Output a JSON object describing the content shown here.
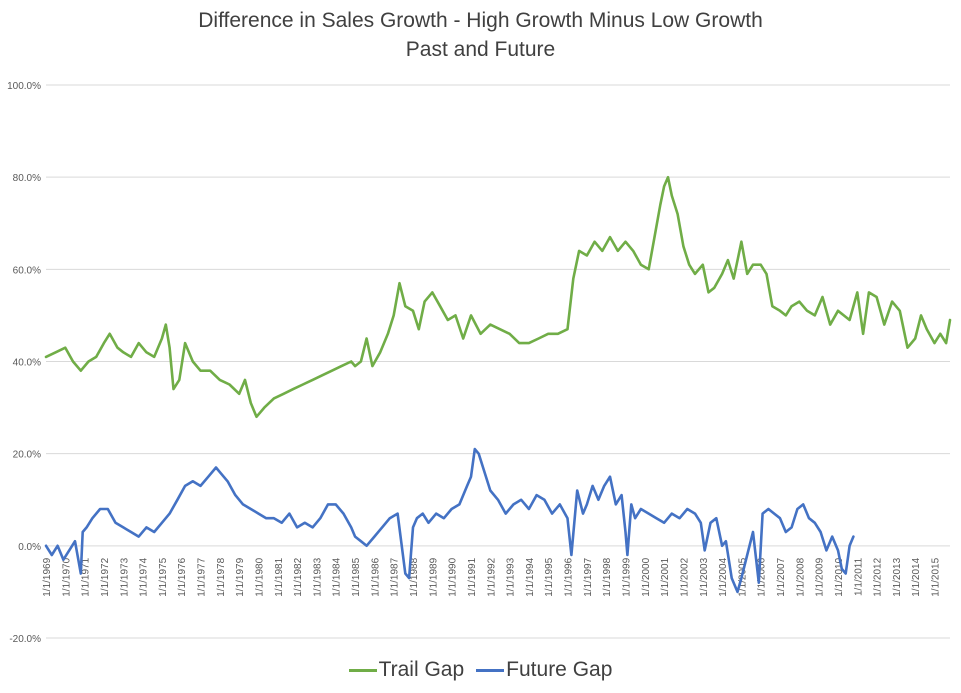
{
  "chart_data": {
    "type": "line",
    "title": "Difference in Sales Growth - High Growth Minus Low Growth",
    "subtitle": "Past and Future",
    "xlabel": "",
    "ylabel": "",
    "ylim": [
      -0.2,
      1.0
    ],
    "y_ticks": [
      "100.0%",
      "80.0%",
      "60.0%",
      "40.0%",
      "20.0%",
      "0.0%",
      "-20.0%"
    ],
    "y_tick_values": [
      1.0,
      0.8,
      0.6,
      0.4,
      0.2,
      0.0,
      -0.2
    ],
    "x_range": [
      1969,
      2015.8
    ],
    "x_ticks": [
      "1/1/1969",
      "1/1/1970",
      "1/1/1971",
      "1/1/1972",
      "1/1/1973",
      "1/1/1974",
      "1/1/1975",
      "1/1/1976",
      "1/1/1977",
      "1/1/1978",
      "1/1/1979",
      "1/1/1980",
      "1/1/1981",
      "1/1/1982",
      "1/1/1983",
      "1/1/1984",
      "1/1/1985",
      "1/1/1986",
      "1/1/1987",
      "1/1/1988",
      "1/1/1989",
      "1/1/1990",
      "1/1/1991",
      "1/1/1992",
      "1/1/1993",
      "1/1/1994",
      "1/1/1995",
      "1/1/1996",
      "1/1/1997",
      "1/1/1998",
      "1/1/1999",
      "1/1/2000",
      "1/1/2001",
      "1/1/2002",
      "1/1/2003",
      "1/1/2004",
      "1/1/2005",
      "1/1/2006",
      "1/1/2007",
      "1/1/2008",
      "1/1/2009",
      "1/1/2010",
      "1/1/2011",
      "1/1/2012",
      "1/1/2013",
      "1/1/2014",
      "1/1/2015"
    ],
    "x_tick_years": [
      1969,
      1970,
      1971,
      1972,
      1973,
      1974,
      1975,
      1976,
      1977,
      1978,
      1979,
      1980,
      1981,
      1982,
      1983,
      1984,
      1985,
      1986,
      1987,
      1988,
      1989,
      1990,
      1991,
      1992,
      1993,
      1994,
      1995,
      1996,
      1997,
      1998,
      1999,
      2000,
      2001,
      2002,
      2003,
      2004,
      2005,
      2006,
      2007,
      2008,
      2009,
      2010,
      2011,
      2012,
      2013,
      2014,
      2015
    ],
    "grid": true,
    "legend_position": "bottom",
    "series": [
      {
        "name": "Trail Gap",
        "color": "#70AD47",
        "x": [
          1969.0,
          1969.5,
          1970.0,
          1970.4,
          1970.8,
          1971.2,
          1971.6,
          1972.0,
          1972.3,
          1972.7,
          1973.0,
          1973.4,
          1973.8,
          1974.2,
          1974.6,
          1975.0,
          1975.2,
          1975.4,
          1975.6,
          1975.9,
          1976.2,
          1976.6,
          1977.0,
          1977.5,
          1978.0,
          1978.5,
          1979.0,
          1979.3,
          1979.6,
          1979.9,
          1980.3,
          1980.8,
          1981.3,
          1981.8,
          1982.3,
          1982.8,
          1983.3,
          1983.8,
          1984.3,
          1984.8,
          1985.0,
          1985.3,
          1985.6,
          1985.9,
          1986.3,
          1986.7,
          1987.0,
          1987.3,
          1987.6,
          1988.0,
          1988.3,
          1988.6,
          1989.0,
          1989.4,
          1989.8,
          1990.2,
          1990.6,
          1991.0,
          1991.5,
          1992.0,
          1992.5,
          1993.0,
          1993.5,
          1994.0,
          1994.5,
          1995.0,
          1995.5,
          1996.0,
          1996.3,
          1996.6,
          1997.0,
          1997.4,
          1997.8,
          1998.2,
          1998.6,
          1999.0,
          1999.4,
          1999.8,
          2000.2,
          2000.5,
          2000.8,
          2001.0,
          2001.2,
          2001.4,
          2001.7,
          2002.0,
          2002.3,
          2002.6,
          2003.0,
          2003.3,
          2003.6,
          2004.0,
          2004.3,
          2004.6,
          2005.0,
          2005.3,
          2005.6,
          2006.0,
          2006.3,
          2006.6,
          2007.0,
          2007.3,
          2007.6,
          2008.0,
          2008.4,
          2008.8,
          2009.2,
          2009.6,
          2010.0,
          2010.3,
          2010.6,
          2011.0,
          2011.3,
          2011.6,
          2012.0,
          2012.4,
          2012.8,
          2013.2,
          2013.6,
          2014.0,
          2014.3,
          2014.6,
          2015.0,
          2015.3,
          2015.6,
          2015.8
        ],
        "y": [
          0.41,
          0.42,
          0.43,
          0.4,
          0.38,
          0.4,
          0.41,
          0.44,
          0.46,
          0.43,
          0.42,
          0.41,
          0.44,
          0.42,
          0.41,
          0.45,
          0.48,
          0.43,
          0.34,
          0.36,
          0.44,
          0.4,
          0.38,
          0.38,
          0.36,
          0.35,
          0.33,
          0.36,
          0.31,
          0.28,
          0.3,
          0.32,
          0.33,
          0.34,
          0.35,
          0.36,
          0.37,
          0.38,
          0.39,
          0.4,
          0.39,
          0.4,
          0.45,
          0.39,
          0.42,
          0.46,
          0.5,
          0.57,
          0.52,
          0.51,
          0.47,
          0.53,
          0.55,
          0.52,
          0.49,
          0.5,
          0.45,
          0.5,
          0.46,
          0.48,
          0.47,
          0.46,
          0.44,
          0.44,
          0.45,
          0.46,
          0.46,
          0.47,
          0.58,
          0.64,
          0.63,
          0.66,
          0.64,
          0.67,
          0.64,
          0.66,
          0.64,
          0.61,
          0.6,
          0.67,
          0.74,
          0.78,
          0.8,
          0.76,
          0.72,
          0.65,
          0.61,
          0.59,
          0.61,
          0.55,
          0.56,
          0.59,
          0.62,
          0.58,
          0.66,
          0.59,
          0.61,
          0.61,
          0.59,
          0.52,
          0.51,
          0.5,
          0.52,
          0.53,
          0.51,
          0.5,
          0.54,
          0.48,
          0.51,
          0.5,
          0.49,
          0.55,
          0.46,
          0.55,
          0.54,
          0.48,
          0.53,
          0.51,
          0.43,
          0.45,
          0.5,
          0.47,
          0.44,
          0.46,
          0.44,
          0.49
        ],
        "x_label": "",
        "y_label": ""
      },
      {
        "name": "Future Gap",
        "color": "#4472C4",
        "x": [
          1969.0,
          1969.3,
          1969.6,
          1969.9,
          1970.2,
          1970.5,
          1970.8,
          1970.9,
          1971.1,
          1971.4,
          1971.8,
          1972.2,
          1972.6,
          1973.0,
          1973.4,
          1973.8,
          1974.2,
          1974.6,
          1975.0,
          1975.4,
          1975.8,
          1976.2,
          1976.6,
          1977.0,
          1977.4,
          1977.8,
          1978.0,
          1978.4,
          1978.8,
          1979.2,
          1979.6,
          1980.0,
          1980.4,
          1980.8,
          1981.2,
          1981.6,
          1982.0,
          1982.4,
          1982.8,
          1983.2,
          1983.6,
          1984.0,
          1984.4,
          1984.8,
          1985.0,
          1985.3,
          1985.6,
          1986.0,
          1986.4,
          1986.8,
          1987.2,
          1987.6,
          1987.8,
          1988.0,
          1988.2,
          1988.5,
          1988.8,
          1989.2,
          1989.6,
          1990.0,
          1990.4,
          1990.8,
          1991.0,
          1991.2,
          1991.4,
          1991.7,
          1992.0,
          1992.4,
          1992.8,
          1993.2,
          1993.6,
          1994.0,
          1994.4,
          1994.8,
          1995.2,
          1995.6,
          1996.0,
          1996.2,
          1996.5,
          1996.8,
          1997.0,
          1997.3,
          1997.6,
          1997.9,
          1998.2,
          1998.5,
          1998.8,
          1999.0,
          1999.1,
          1999.3,
          1999.5,
          1999.8,
          2000.2,
          2000.6,
          2001.0,
          2001.4,
          2001.8,
          2002.2,
          2002.6,
          2002.9,
          2003.1,
          2003.4,
          2003.7,
          2004.0,
          2004.2,
          2004.5,
          2004.8,
          2005.0,
          2005.3,
          2005.6,
          2005.9,
          2006.1,
          2006.4,
          2006.7,
          2007.0,
          2007.3,
          2007.6,
          2007.9,
          2008.2,
          2008.5,
          2008.8,
          2009.1,
          2009.4,
          2009.7,
          2010.0,
          2010.2,
          2010.4,
          2010.6,
          2010.8
        ],
        "y": [
          0.0,
          -0.02,
          0.0,
          -0.03,
          -0.01,
          0.01,
          -0.06,
          0.03,
          0.04,
          0.06,
          0.08,
          0.08,
          0.05,
          0.04,
          0.03,
          0.02,
          0.04,
          0.03,
          0.05,
          0.07,
          0.1,
          0.13,
          0.14,
          0.13,
          0.15,
          0.17,
          0.16,
          0.14,
          0.11,
          0.09,
          0.08,
          0.07,
          0.06,
          0.06,
          0.05,
          0.07,
          0.04,
          0.05,
          0.04,
          0.06,
          0.09,
          0.09,
          0.07,
          0.04,
          0.02,
          0.01,
          0.0,
          0.02,
          0.04,
          0.06,
          0.07,
          -0.06,
          -0.07,
          0.04,
          0.06,
          0.07,
          0.05,
          0.07,
          0.06,
          0.08,
          0.09,
          0.13,
          0.15,
          0.21,
          0.2,
          0.16,
          0.12,
          0.1,
          0.07,
          0.09,
          0.1,
          0.08,
          0.11,
          0.1,
          0.07,
          0.09,
          0.06,
          -0.02,
          0.12,
          0.07,
          0.09,
          0.13,
          0.1,
          0.13,
          0.15,
          0.09,
          0.11,
          0.03,
          -0.02,
          0.09,
          0.06,
          0.08,
          0.07,
          0.06,
          0.05,
          0.07,
          0.06,
          0.08,
          0.07,
          0.05,
          -0.01,
          0.05,
          0.06,
          0.0,
          0.01,
          -0.07,
          -0.1,
          -0.07,
          -0.02,
          0.03,
          -0.08,
          0.07,
          0.08,
          0.07,
          0.06,
          0.03,
          0.04,
          0.08,
          0.09,
          0.06,
          0.05,
          0.03,
          -0.01,
          0.02,
          -0.01,
          -0.05,
          -0.06,
          0.0,
          0.02
        ],
        "x_label": "",
        "y_label": ""
      }
    ]
  }
}
